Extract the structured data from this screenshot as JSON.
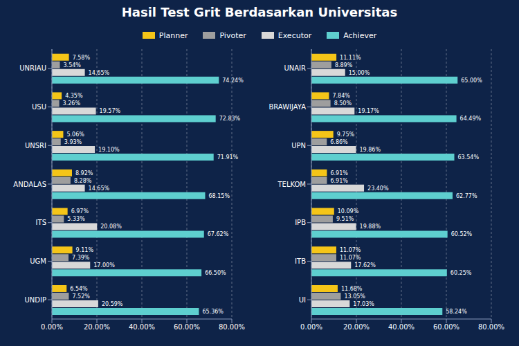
{
  "chart_data": [
    {
      "type": "bar",
      "title": "Hasil Test Grit Berdasarkan Universitas",
      "orientation": "horizontal",
      "legend": "top",
      "grid": true,
      "data_labels": true,
      "categories": [
        "UNRIAU",
        "USU",
        "UNSRI",
        "ANDALAS",
        "ITS",
        "UGM",
        "UNDIP"
      ],
      "xlim": [
        0,
        80
      ],
      "xticks": [
        {
          "value": 0,
          "label": "0.00%"
        },
        {
          "value": 20,
          "label": "20.00%"
        },
        {
          "value": 40,
          "label": "40.00%"
        },
        {
          "value": 60,
          "label": "60.00%"
        },
        {
          "value": 80,
          "label": "80.00%"
        }
      ],
      "series": [
        {
          "name": "Planner",
          "color": "#f5c518",
          "values": [
            7.58,
            4.35,
            5.06,
            8.92,
            6.97,
            9.11,
            6.54
          ],
          "value_labels": [
            "7.58%",
            "4.35%",
            "5.06%",
            "8.92%",
            "6.97%",
            "9.11%",
            "6.54%"
          ]
        },
        {
          "name": "Pivoter",
          "color": "#9e9e9e",
          "values": [
            3.54,
            3.26,
            3.93,
            8.28,
            5.33,
            7.39,
            7.52
          ],
          "value_labels": [
            "3.54%",
            "3.26%",
            "3.93%",
            "8.28%",
            "5.33%",
            "7.39%",
            "7.52%"
          ]
        },
        {
          "name": "Executor",
          "color": "#d8d8d8",
          "values": [
            14.65,
            19.57,
            19.1,
            14.65,
            20.08,
            17,
            20.59
          ],
          "value_labels": [
            "14.65%",
            "19.57%",
            "19.10%",
            "14.65%",
            "20.08%",
            "17.00%",
            "20.59%"
          ]
        },
        {
          "name": "Achiever",
          "color": "#5ecfcf",
          "values": [
            74.24,
            72.83,
            71.91,
            68.15,
            67.62,
            66.5,
            65.36
          ],
          "value_labels": [
            "74.24%",
            "72.83%",
            "71.91%",
            "68.15%",
            "67.62%",
            "66.50%",
            "65.36%"
          ]
        }
      ]
    },
    {
      "type": "bar",
      "orientation": "horizontal",
      "grid": true,
      "data_labels": true,
      "categories": [
        "UNAIR",
        "BRAWIJAYA",
        "UPN",
        "TELKOM",
        "IPB",
        "ITB",
        "UI"
      ],
      "xlim": [
        0,
        80
      ],
      "xticks": [
        {
          "value": 0,
          "label": "0.00%"
        },
        {
          "value": 20,
          "label": "20.00%"
        },
        {
          "value": 40,
          "label": "40.00%"
        },
        {
          "value": 60,
          "label": "60.00%"
        },
        {
          "value": 80,
          "label": "80.00%"
        }
      ],
      "series": [
        {
          "name": "Planner",
          "color": "#f5c518",
          "values": [
            11.11,
            7.84,
            9.75,
            6.91,
            10.09,
            11.07,
            11.68
          ],
          "value_labels": [
            "11.11%",
            "7.84%",
            "9.75%",
            "6.91%",
            "10.09%",
            "11.07%",
            "11.68%"
          ]
        },
        {
          "name": "Pivoter",
          "color": "#9e9e9e",
          "values": [
            8.89,
            8.5,
            6.86,
            6.91,
            9.51,
            11.07,
            13.05
          ],
          "value_labels": [
            "8.89%",
            "8.50%",
            "6.86%",
            "6.91%",
            "9.51%",
            "11.07%",
            "13.05%"
          ]
        },
        {
          "name": "Executor",
          "color": "#d8d8d8",
          "values": [
            15,
            19.17,
            19.86,
            23.4,
            19.88,
            17.62,
            17.03
          ],
          "value_labels": [
            "15.00%",
            "19.17%",
            "19.86%",
            "23.40%",
            "19.88%",
            "17.62%",
            "17.03%"
          ]
        },
        {
          "name": "Achiever",
          "color": "#5ecfcf",
          "values": [
            65,
            64.49,
            63.54,
            62.77,
            60.52,
            60.25,
            58.24
          ],
          "value_labels": [
            "65.00%",
            "64.49%",
            "63.54%",
            "62.77%",
            "60.52%",
            "60.25%",
            "58.24%"
          ]
        }
      ]
    }
  ]
}
